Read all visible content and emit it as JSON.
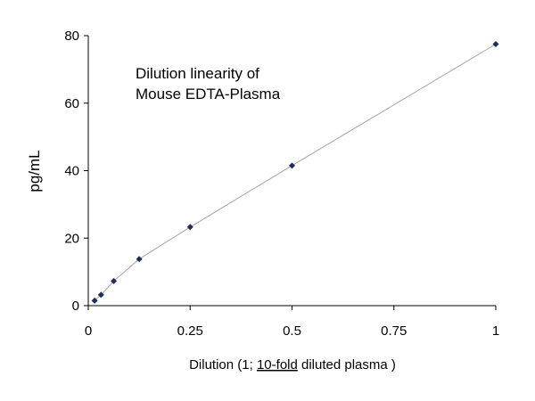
{
  "chart_data": {
    "type": "scatter",
    "title_lines": [
      "Dilution linearity of",
      "Mouse EDTA-Plasma"
    ],
    "xlabel": {
      "before": "Dilution (1; ",
      "underlined": "10-fold",
      "after": " diluted plasma )"
    },
    "ylabel": "pg/mL",
    "xlim": [
      0,
      1
    ],
    "ylim": [
      0,
      80
    ],
    "x_ticks": [
      0,
      0.25,
      0.5,
      0.75,
      1
    ],
    "x_tick_labels": [
      "0",
      "0.25",
      "0.5",
      "0.75",
      "1"
    ],
    "y_ticks": [
      0,
      20,
      40,
      60,
      80
    ],
    "y_tick_labels": [
      "0",
      "20",
      "40",
      "60",
      "80"
    ],
    "grid": false,
    "legend": "none",
    "series": [
      {
        "x": [
          0.0156,
          0.03125,
          0.0625,
          0.125,
          0.25,
          0.5,
          1
        ],
        "y": [
          1.5,
          3.2,
          7.3,
          13.8,
          23.3,
          41.5,
          77.5
        ],
        "marker_color": "#1f2d5a",
        "line_color": "#a6a6a6"
      }
    ]
  }
}
